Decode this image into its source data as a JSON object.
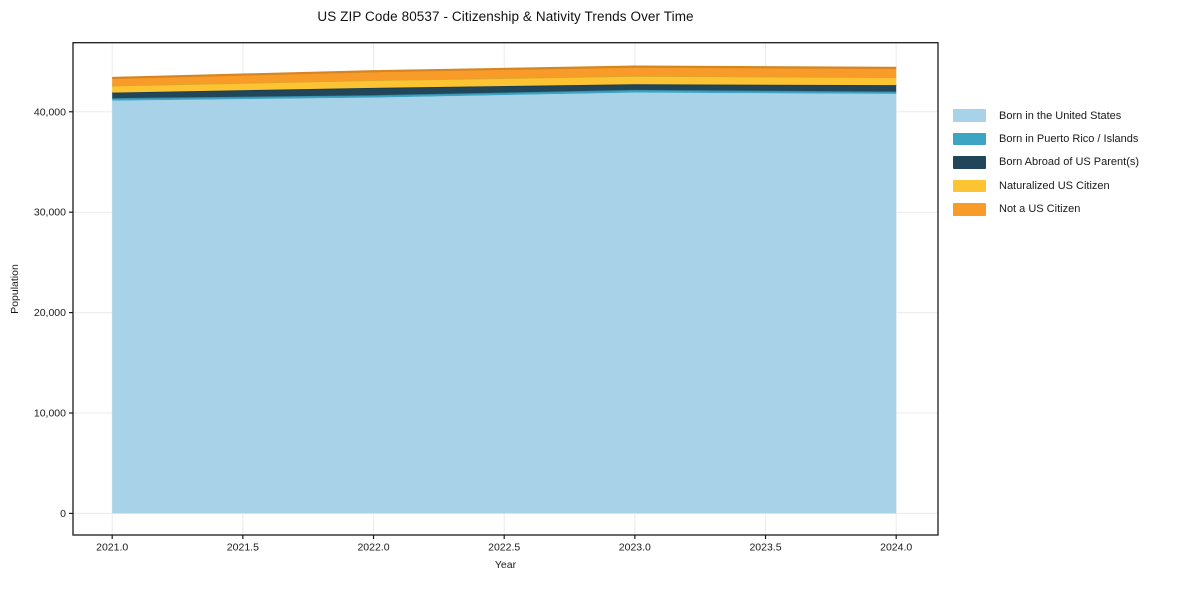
{
  "title": "US ZIP Code 80537 - Citizenship & Nativity Trends Over Time",
  "chart_data": {
    "type": "area",
    "stacked": true,
    "title": "US ZIP Code 80537 - Citizenship & Nativity Trends Over Time",
    "xlabel": "Year",
    "ylabel": "Population",
    "x": [
      2021,
      2022,
      2023,
      2024
    ],
    "series": [
      {
        "name": "Born in the United States",
        "color": "#a8d2e8",
        "values": [
          41110,
          41410,
          41910,
          41780
        ]
      },
      {
        "name": "Born in Puerto Rico / Islands",
        "color": "#3ea4c3",
        "values": [
          240,
          240,
          270,
          230
        ]
      },
      {
        "name": "Born Abroad of US Parent(s)",
        "color": "#21465a",
        "values": [
          560,
          730,
          560,
          640
        ]
      },
      {
        "name": "Naturalized US Citizen",
        "color": "#fcc332",
        "values": [
          690,
          760,
          830,
          790
        ]
      },
      {
        "name": "Not a US Citizen",
        "color": "#f89b28",
        "values": [
          770,
          900,
          930,
          930
        ]
      }
    ],
    "totals": [
      43370,
      44040,
      44500,
      44370
    ],
    "xlim": [
      2020.85,
      2024.16
    ],
    "ylim": [
      -2150,
      46880
    ],
    "xticks": [
      2021.0,
      2021.5,
      2022.0,
      2022.5,
      2023.0,
      2023.5,
      2024.0
    ],
    "xtick_labels": [
      "2021.0",
      "2021.5",
      "2022.0",
      "2022.5",
      "2023.0",
      "2023.5",
      "2024.0"
    ],
    "yticks": [
      0,
      10000,
      20000,
      30000,
      40000
    ],
    "ytick_labels": [
      "0",
      "10,000",
      "20,000",
      "30,000",
      "40,000"
    ],
    "grid": true,
    "grid_color": "#ebebeb",
    "axis_color": "#1a1a1a",
    "background": "#ffffff",
    "legend_position": "right-outside"
  }
}
